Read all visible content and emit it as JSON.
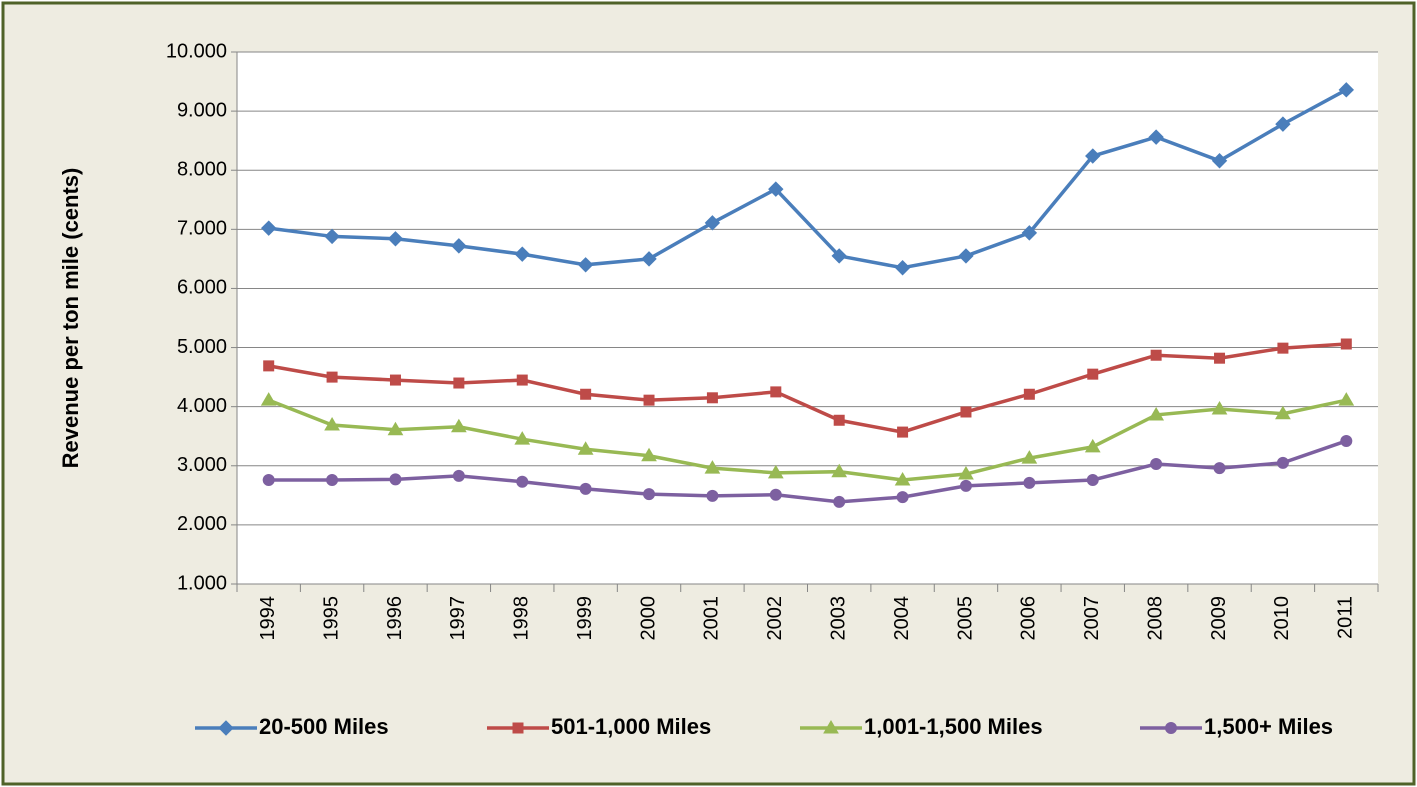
{
  "chart_data": {
    "type": "line",
    "y_label": "Revenue per ton mile (cents)",
    "categories": [
      "1994",
      "1995",
      "1996",
      "1997",
      "1998",
      "1999",
      "2000",
      "2001",
      "2002",
      "2003",
      "2004",
      "2005",
      "2006",
      "2007",
      "2008",
      "2009",
      "2010",
      "2011"
    ],
    "series": [
      {
        "name": "20-500 Miles",
        "color": "#4a7ebb",
        "marker": "diamond",
        "values": [
          7.02,
          6.88,
          6.84,
          6.72,
          6.58,
          6.4,
          6.5,
          7.11,
          7.68,
          6.55,
          6.35,
          6.55,
          6.94,
          8.24,
          8.56,
          8.16,
          8.78,
          9.36
        ]
      },
      {
        "name": "501-1,000 Miles",
        "color": "#be4b48",
        "marker": "square",
        "values": [
          4.69,
          4.5,
          4.45,
          4.4,
          4.45,
          4.21,
          4.11,
          4.15,
          4.25,
          3.77,
          3.57,
          3.91,
          4.21,
          4.55,
          4.87,
          4.82,
          4.99,
          5.06
        ]
      },
      {
        "name": "1,001-1,500 Miles",
        "color": "#98b954",
        "marker": "triangle",
        "values": [
          4.11,
          3.69,
          3.61,
          3.66,
          3.45,
          3.28,
          3.17,
          2.96,
          2.88,
          2.9,
          2.76,
          2.86,
          3.13,
          3.32,
          3.86,
          3.96,
          3.88,
          4.11
        ]
      },
      {
        "name": "1,500+ Miles",
        "color": "#7d60a0",
        "marker": "circle",
        "values": [
          2.76,
          2.76,
          2.77,
          2.83,
          2.73,
          2.61,
          2.52,
          2.49,
          2.51,
          2.39,
          2.47,
          2.66,
          2.71,
          2.76,
          3.03,
          2.96,
          3.05,
          3.42
        ]
      }
    ],
    "ylim": [
      1,
      10
    ],
    "yticks": [
      {
        "value": 1,
        "label": "1.000"
      },
      {
        "value": 2,
        "label": "2.000"
      },
      {
        "value": 3,
        "label": "3.000"
      },
      {
        "value": 4,
        "label": "4.000"
      },
      {
        "value": 5,
        "label": "5.000"
      },
      {
        "value": 6,
        "label": "6.000"
      },
      {
        "value": 7,
        "label": "7.000"
      },
      {
        "value": 8,
        "label": "8.000"
      },
      {
        "value": 9,
        "label": "9.000"
      },
      {
        "value": 10,
        "label": "10.000"
      }
    ],
    "grid": true,
    "legend": "bottom"
  }
}
